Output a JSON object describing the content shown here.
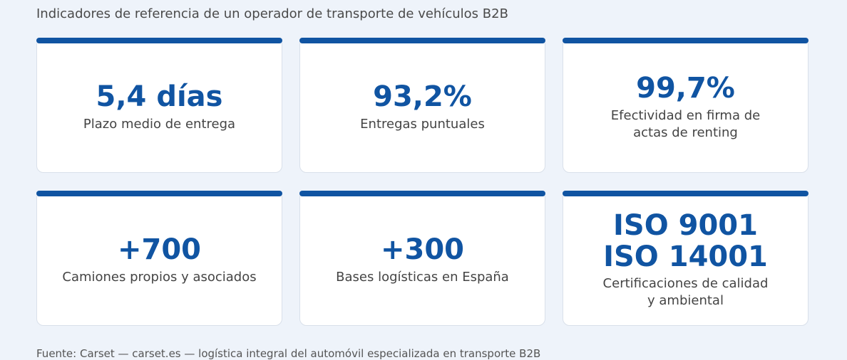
{
  "subtitle": "Indicadores de referencia de un operador de transporte de vehículos B2B",
  "accent_color": "#1054a2",
  "cards": [
    {
      "value": "5,4 días",
      "label": "Plazo medio de entrega"
    },
    {
      "value": "93,2%",
      "label": "Entregas puntuales"
    },
    {
      "value": "99,7%",
      "label": "Efectividad en firma de\nactas de renting"
    },
    {
      "value": "+700",
      "label": "Camiones propios y asociados"
    },
    {
      "value": "+300",
      "label": "Bases logísticas en España"
    },
    {
      "value": "ISO 9001\nISO 14001",
      "label": "Certificaciones de calidad\ny ambiental"
    }
  ],
  "footer": "Fuente: Carset — carset.es — logística integral del automóvil especializada en transporte B2B"
}
